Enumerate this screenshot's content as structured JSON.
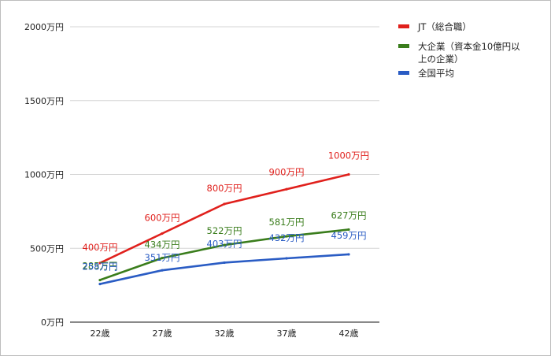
{
  "chart_data": {
    "type": "line",
    "categories": [
      "22歳",
      "27歳",
      "32歳",
      "37歳",
      "42歳"
    ],
    "ylim": [
      0,
      2000
    ],
    "yticks": [
      0,
      500,
      1000,
      1500,
      2000
    ],
    "ytick_labels": [
      "0万円",
      "500万円",
      "1000万円",
      "1500万円",
      "2000万円"
    ],
    "grid": true,
    "legend_position": "right",
    "series": [
      {
        "name": "JT（総合職）",
        "color": "#e0201c",
        "values": [
          400,
          600,
          800,
          900,
          1000
        ],
        "labels": [
          "400万円",
          "600万円",
          "800万円",
          "900万円",
          "1000万円"
        ]
      },
      {
        "name": "大企業（資本金10億円以上の企業）",
        "name_lines": [
          "大企業（資本金10億円以",
          "上の企業）"
        ],
        "color": "#3a7d1c",
        "values": [
          285,
          434,
          522,
          581,
          627
        ],
        "labels": [
          "285万円",
          "434万円",
          "522万円",
          "581万円",
          "627万円"
        ]
      },
      {
        "name": "全国平均",
        "color": "#2a5cc4",
        "values": [
          258,
          351,
          403,
          432,
          459
        ],
        "labels": [
          "258万円",
          "351万円",
          "403万円",
          "432万円",
          "459万円"
        ]
      }
    ]
  }
}
